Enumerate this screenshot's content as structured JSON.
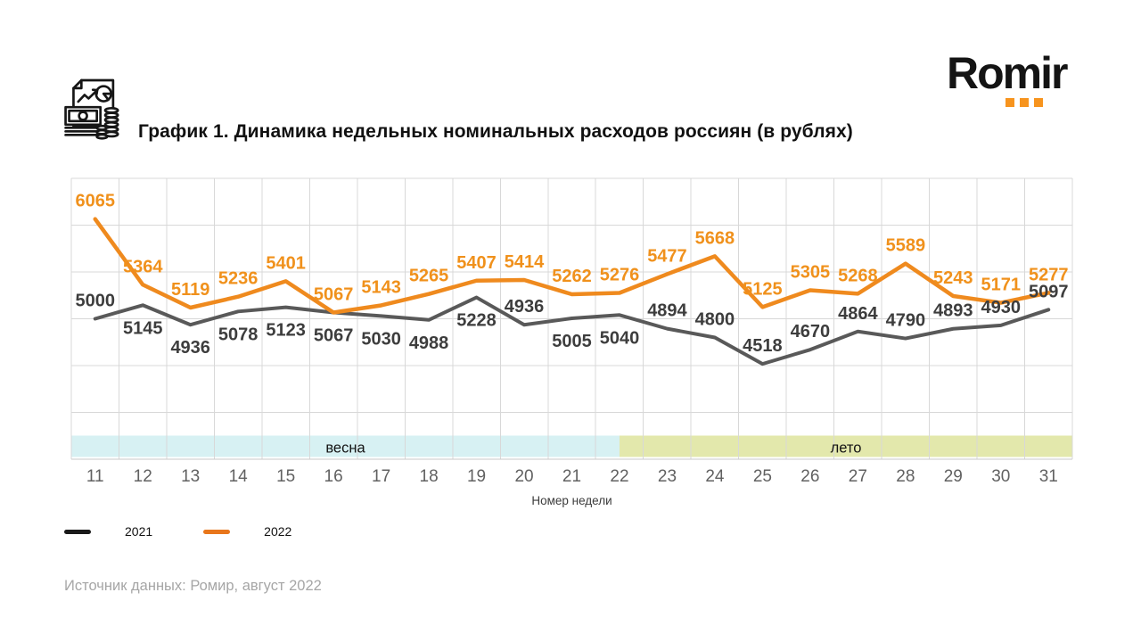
{
  "logo": {
    "text": "Romir",
    "dot_color": "#F7941E",
    "dot_count": 3
  },
  "header": {
    "icon": "money-report-icon"
  },
  "chart_data": {
    "type": "line",
    "title": "График 1. Динамика недельных номинальных расходов россиян (в рублях)",
    "xlabel": "Номер недели",
    "x": [
      11,
      12,
      13,
      14,
      15,
      16,
      17,
      18,
      19,
      20,
      21,
      22,
      23,
      24,
      25,
      26,
      27,
      28,
      29,
      30,
      31
    ],
    "ylim": [
      3500,
      6500
    ],
    "ytick_step": 500,
    "grid": true,
    "y_axis_labels_visible": false,
    "legend_position": "bottom-left",
    "series": [
      {
        "name": "2021",
        "color": "#595959",
        "swatch_color": "#1a1a1a",
        "label_color": "#3d3d3d",
        "values": [
          5000,
          5145,
          4936,
          5078,
          5123,
          5067,
          5030,
          4988,
          5228,
          4936,
          5005,
          5040,
          4894,
          4800,
          4518,
          4670,
          4864,
          4790,
          4893,
          4930,
          5097
        ],
        "label_placement": [
          "above",
          "below",
          "below",
          "below",
          "below",
          "below",
          "below",
          "below",
          "below",
          "above",
          "below",
          "below",
          "above",
          "above",
          "above",
          "above",
          "above",
          "above",
          "above",
          "above",
          "above"
        ]
      },
      {
        "name": "2022",
        "color": "#EF8A1E",
        "swatch_color": "#E8761B",
        "label_color": "#F0911C",
        "values": [
          6065,
          5364,
          5119,
          5236,
          5401,
          5067,
          5143,
          5265,
          5407,
          5414,
          5262,
          5276,
          5477,
          5668,
          5125,
          5305,
          5268,
          5589,
          5243,
          5171,
          5277
        ],
        "label_placement": "above"
      }
    ],
    "bands": [
      {
        "id": "spring",
        "label": "весна",
        "from": 10.5,
        "to": 22,
        "color": "#D7F1F3"
      },
      {
        "id": "summer",
        "label": "лето",
        "from": 22,
        "to": 31.5,
        "color": "#E3E8AC"
      }
    ]
  },
  "footer": {
    "source": "Источник данных: Ромир, август 2022"
  }
}
